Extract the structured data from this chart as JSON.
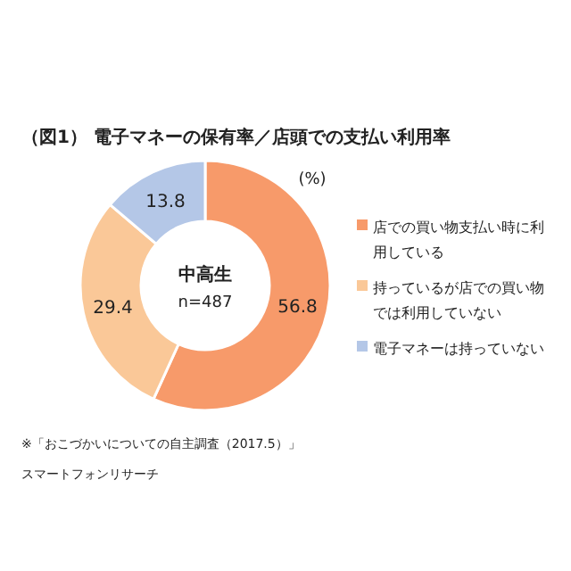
{
  "chart_data": {
    "type": "donut",
    "title": "（図1） 電子マネーの保有率／店頭での支払い利用率",
    "categories": [
      "店での買い物支払い時に利用している",
      "持っているが店での買い物では利用していない",
      "電子マネーは持っていない"
    ],
    "values": [
      56.8,
      29.4,
      13.8
    ],
    "colors": [
      "#f79a6a",
      "#fac898",
      "#b4c7e7"
    ],
    "data_labels": true,
    "legend": "right",
    "annotations": [
      "(%)",
      "中高生",
      "n=487",
      "※「おこづかいについての自主調査（2017.5）」",
      "スマートフォンリサーチ"
    ]
  }
}
